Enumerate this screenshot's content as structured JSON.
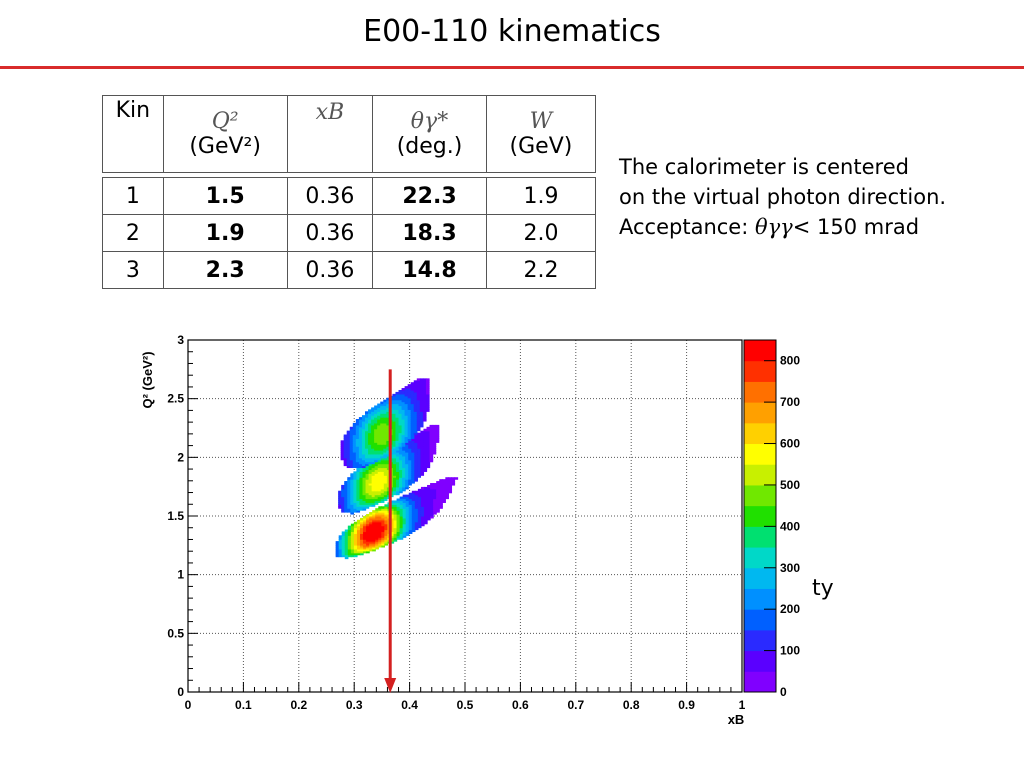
{
  "title": "E00-110 kinematics",
  "table": {
    "headers": [
      {
        "main": "Kin",
        "sub": ""
      },
      {
        "main": "Q²",
        "sub": "(GeV²)"
      },
      {
        "main": "xB",
        "sub": ""
      },
      {
        "main": "θγ*",
        "sub": "(deg.)"
      },
      {
        "main": "W",
        "sub": "(GeV)"
      }
    ],
    "rows": [
      {
        "kin": "1",
        "q2": "1.5",
        "xb": "0.36",
        "theta": "22.3",
        "w": "1.9"
      },
      {
        "kin": "2",
        "q2": "1.9",
        "xb": "0.36",
        "theta": "18.3",
        "w": "2.0"
      },
      {
        "kin": "3",
        "q2": "2.3",
        "xb": "0.36",
        "theta": "14.8",
        "w": "2.2"
      }
    ]
  },
  "note": {
    "line1": "The calorimeter is centered",
    "line2": "on the virtual photon direction.",
    "line3_prefix": "Acceptance: ",
    "line3_symbol": "θγγ",
    "line3_suffix": "< 150 mrad"
  },
  "stray_text": "ty",
  "chart_data": {
    "type": "heatmap",
    "xlabel": "xB",
    "ylabel": "Q² (GeV²)",
    "xlim": [
      0,
      1
    ],
    "ylim": [
      0,
      3
    ],
    "x_ticks": [
      "0",
      "0.1",
      "0.2",
      "0.3",
      "0.4",
      "0.5",
      "0.6",
      "0.7",
      "0.8",
      "0.9",
      "1"
    ],
    "y_ticks": [
      "0",
      "0.5",
      "1",
      "1.5",
      "2",
      "2.5",
      "3"
    ],
    "grid": true,
    "colorbar": {
      "range": [
        0,
        850
      ],
      "tick_labels": [
        "0",
        "100",
        "200",
        "300",
        "400",
        "500",
        "600",
        "700",
        "800"
      ]
    },
    "bands": [
      {
        "xb_start": 0.27,
        "q2_start": 1.14,
        "xb_end": 0.48,
        "q2_end": 1.82,
        "peak_xb": 0.33,
        "peak_q2": 1.38,
        "peak": 850
      },
      {
        "xb_start": 0.28,
        "q2_start": 1.52,
        "xb_end": 0.45,
        "q2_end": 2.26,
        "peak_xb": 0.34,
        "peak_q2": 1.79,
        "peak": 550
      },
      {
        "xb_start": 0.29,
        "q2_start": 1.9,
        "xb_end": 0.43,
        "q2_end": 2.67,
        "peak_xb": 0.35,
        "peak_q2": 2.18,
        "peak": 450
      }
    ],
    "arrow": {
      "xb": 0.365,
      "q2_from": 2.75,
      "q2_to": 0.0,
      "color": "#d42020"
    }
  }
}
